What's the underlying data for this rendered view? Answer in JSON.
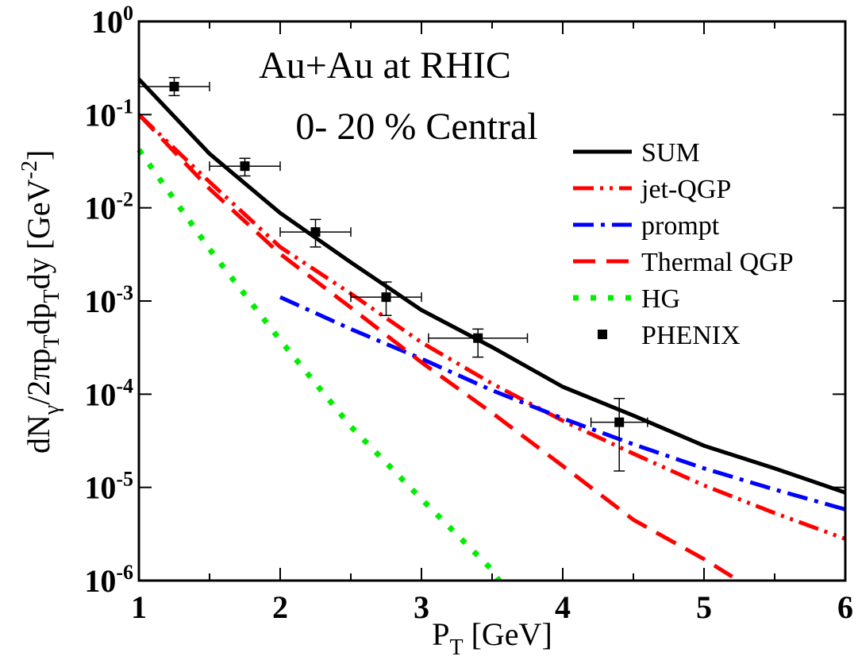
{
  "chart_data": {
    "type": "line",
    "yscale": "log",
    "xlim": [
      1,
      6
    ],
    "ylim_exponent": [
      -6,
      0
    ],
    "x_ticks": [
      "1",
      "2",
      "3",
      "4",
      "5",
      "6"
    ],
    "y_ticks": [
      {
        "base": "10",
        "exp": "0",
        "e": 0
      },
      {
        "base": "10",
        "exp": "-1",
        "e": -1
      },
      {
        "base": "10",
        "exp": "-2",
        "e": -2
      },
      {
        "base": "10",
        "exp": "-3",
        "e": -3
      },
      {
        "base": "10",
        "exp": "-4",
        "e": -4
      },
      {
        "base": "10",
        "exp": "-5",
        "e": -5
      },
      {
        "base": "10",
        "exp": "-6",
        "e": -6
      }
    ],
    "xlabel": {
      "main": "P",
      "sub": "T",
      "rest": " [GeV]"
    },
    "ylabel": {
      "p1": "dN",
      "s1": "γ",
      "p2": "/2πp",
      "s2": "T",
      "p3": "dp",
      "s3": "T",
      "p4": "dy [GeV",
      "sup": "-2",
      "p5": "]"
    },
    "annotations": {
      "line1": "Au+Au at RHIC",
      "line2": "0- 20 % Central"
    },
    "series": [
      {
        "name": "SUM",
        "color": "#000000",
        "style": "solid",
        "x": [
          1.0,
          1.5,
          2.0,
          2.5,
          3.0,
          3.5,
          4.0,
          4.5,
          5.0,
          5.5,
          6.0
        ],
        "y": [
          0.24,
          0.038,
          0.0088,
          0.0026,
          0.0008,
          0.00032,
          0.00012,
          5.9e-05,
          2.8e-05,
          1.6e-05,
          8.8e-06
        ]
      },
      {
        "name": "jet-QGP",
        "color": "#ff0000",
        "style": "dashdotdot",
        "x": [
          1.0,
          1.5,
          2.0,
          2.5,
          3.0,
          3.5,
          4.0,
          4.5,
          5.0,
          5.5,
          6.0
        ],
        "y": [
          0.1,
          0.019,
          0.0038,
          0.0012,
          0.00036,
          0.00013,
          5.2e-05,
          2.3e-05,
          1.05e-05,
          5.3e-06,
          2.8e-06
        ]
      },
      {
        "name": "prompt",
        "color": "#0000ff",
        "style": "dashdot",
        "x": [
          2.0,
          2.5,
          3.0,
          3.5,
          4.0,
          4.5,
          5.0,
          5.5,
          6.0
        ],
        "y": [
          0.0011,
          0.0005,
          0.00024,
          0.00011,
          5.5e-05,
          2.9e-05,
          1.6e-05,
          9.5e-06,
          5.8e-06
        ]
      },
      {
        "name": "Thermal QGP",
        "color": "#ff0000",
        "style": "dashed",
        "x": [
          1.0,
          1.5,
          2.0,
          2.5,
          3.0,
          3.5,
          4.0,
          4.5,
          5.0,
          5.2
        ],
        "y": [
          0.1,
          0.016,
          0.0032,
          0.00085,
          0.00022,
          6.3e-05,
          1.7e-05,
          4.5e-06,
          1.7e-06,
          1.1e-06
        ]
      },
      {
        "name": "HG",
        "color": "#00ee00",
        "style": "dotted",
        "x": [
          1.0,
          1.5,
          2.0,
          2.5,
          3.0,
          3.5,
          3.55
        ],
        "y": [
          0.042,
          0.0036,
          0.00038,
          4.5e-05,
          7.5e-06,
          1.3e-06,
          1e-06
        ]
      }
    ],
    "points": {
      "name": "PHENIX",
      "color": "#000000",
      "data": [
        {
          "x": 1.25,
          "y": 0.2,
          "xerr": 0.25,
          "ylo": 0.16,
          "yhi": 0.25
        },
        {
          "x": 1.75,
          "y": 0.028,
          "xerr": 0.25,
          "ylo": 0.022,
          "yhi": 0.034
        },
        {
          "x": 2.25,
          "y": 0.0055,
          "xerr": 0.25,
          "ylo": 0.0038,
          "yhi": 0.0075
        },
        {
          "x": 2.75,
          "y": 0.0011,
          "xerr": 0.25,
          "ylo": 0.0007,
          "yhi": 0.0016
        },
        {
          "x": 3.4,
          "y": 0.0004,
          "xerr": 0.35,
          "ylo": 0.00025,
          "yhi": 0.0005
        },
        {
          "x": 4.4,
          "y": 5e-05,
          "xerr": 0.2,
          "ylo": 1.5e-05,
          "yhi": 9e-05
        }
      ]
    },
    "legend_position": "right"
  }
}
